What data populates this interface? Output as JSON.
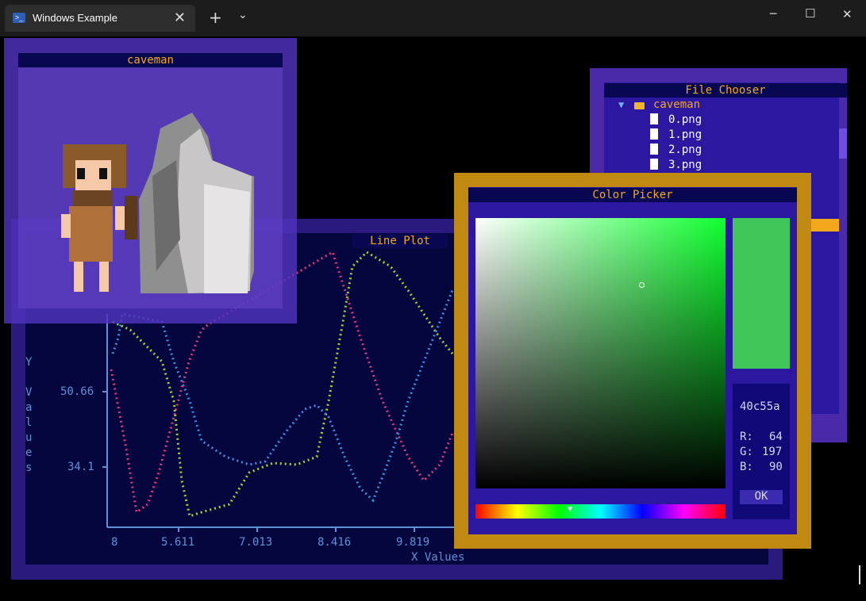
{
  "window": {
    "tab_title": "Windows Example",
    "new_tab": "+",
    "dropdown": "⌄",
    "minimize": "─",
    "maximize": "☐",
    "close": "✕"
  },
  "caveman_window": {
    "title": "caveman"
  },
  "file_chooser": {
    "title": "File Chooser",
    "folder": "caveman",
    "files": [
      "0.png",
      "1.png",
      "2.png",
      "3.png"
    ]
  },
  "color_picker": {
    "title": "Color Picker",
    "hex": "40c55a",
    "r_label": "R:",
    "r": "64",
    "g_label": "G:",
    "g": "197",
    "b_label": "B:",
    "b": "90",
    "ok": "OK",
    "colors": {
      "selected": "#40c55a"
    }
  },
  "line_plot": {
    "title": "Line Plot",
    "y_label": "Y Values",
    "x_label": "X Values",
    "y_ticks": [
      "50.66",
      "34.1"
    ],
    "x_ticks": [
      "8",
      "5.611",
      "7.013",
      "8.416",
      "9.819"
    ],
    "colors": {
      "series_a": "#d93a7a",
      "series_b": "#a6d133",
      "series_c": "#3a8fe0"
    }
  }
}
